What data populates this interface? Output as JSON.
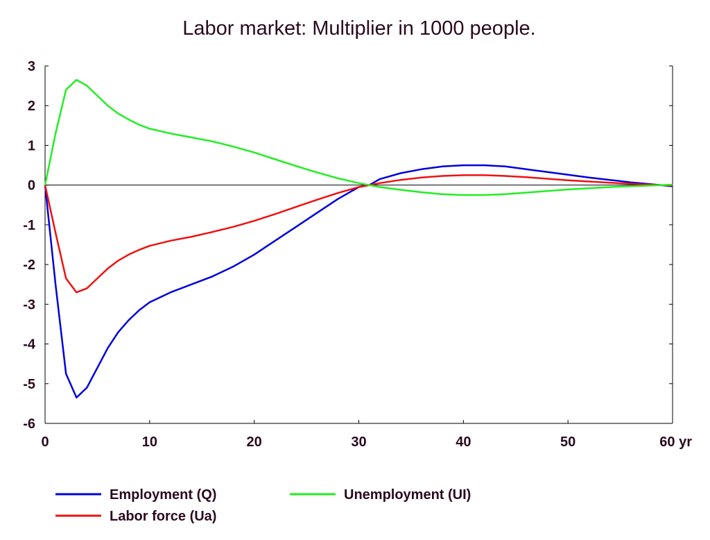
{
  "chart_data": {
    "type": "line",
    "title": "Labor market: Multiplier in 1000 people.",
    "xlabel": "",
    "ylabel": "",
    "xlim": [
      0,
      60
    ],
    "ylim": [
      -6,
      3
    ],
    "x_ticks": [
      {
        "value": 0,
        "label": "0"
      },
      {
        "value": 10,
        "label": "10"
      },
      {
        "value": 20,
        "label": "20"
      },
      {
        "value": 30,
        "label": "30"
      },
      {
        "value": 40,
        "label": "40"
      },
      {
        "value": 50,
        "label": "50"
      },
      {
        "value": 60,
        "label": "60 yr"
      }
    ],
    "y_ticks": [
      {
        "value": 3,
        "label": "3"
      },
      {
        "value": 2,
        "label": "2"
      },
      {
        "value": 1,
        "label": "1"
      },
      {
        "value": 0,
        "label": "0"
      },
      {
        "value": -1,
        "label": "-1"
      },
      {
        "value": -2,
        "label": "-2"
      },
      {
        "value": -3,
        "label": "-3"
      },
      {
        "value": -4,
        "label": "-4"
      },
      {
        "value": -5,
        "label": "-5"
      },
      {
        "value": -6,
        "label": "-6"
      }
    ],
    "grid": false,
    "legend_position": "bottom",
    "series": [
      {
        "name": "Employment (Q)",
        "color": "#0000dd",
        "points": [
          [
            0,
            0
          ],
          [
            1,
            -2.5
          ],
          [
            2,
            -4.75
          ],
          [
            3,
            -5.35
          ],
          [
            4,
            -5.1
          ],
          [
            5,
            -4.6
          ],
          [
            6,
            -4.1
          ],
          [
            7,
            -3.7
          ],
          [
            8,
            -3.4
          ],
          [
            9,
            -3.15
          ],
          [
            10,
            -2.95
          ],
          [
            12,
            -2.7
          ],
          [
            14,
            -2.5
          ],
          [
            16,
            -2.3
          ],
          [
            18,
            -2.05
          ],
          [
            20,
            -1.75
          ],
          [
            22,
            -1.4
          ],
          [
            24,
            -1.05
          ],
          [
            26,
            -0.7
          ],
          [
            28,
            -0.35
          ],
          [
            30,
            -0.05
          ],
          [
            31,
            0
          ],
          [
            32,
            0.15
          ],
          [
            34,
            0.3
          ],
          [
            36,
            0.4
          ],
          [
            38,
            0.47
          ],
          [
            40,
            0.5
          ],
          [
            42,
            0.5
          ],
          [
            44,
            0.47
          ],
          [
            46,
            0.4
          ],
          [
            48,
            0.33
          ],
          [
            50,
            0.26
          ],
          [
            52,
            0.19
          ],
          [
            54,
            0.13
          ],
          [
            56,
            0.07
          ],
          [
            58,
            0.02
          ],
          [
            60,
            -0.03
          ]
        ]
      },
      {
        "name": "Labor force (Ua)",
        "color": "#ee1111",
        "points": [
          [
            0,
            0
          ],
          [
            1,
            -1.2
          ],
          [
            2,
            -2.35
          ],
          [
            3,
            -2.7
          ],
          [
            4,
            -2.6
          ],
          [
            5,
            -2.35
          ],
          [
            6,
            -2.1
          ],
          [
            7,
            -1.9
          ],
          [
            8,
            -1.75
          ],
          [
            9,
            -1.63
          ],
          [
            10,
            -1.53
          ],
          [
            12,
            -1.4
          ],
          [
            14,
            -1.3
          ],
          [
            16,
            -1.18
          ],
          [
            18,
            -1.05
          ],
          [
            20,
            -0.9
          ],
          [
            22,
            -0.73
          ],
          [
            24,
            -0.55
          ],
          [
            26,
            -0.37
          ],
          [
            28,
            -0.2
          ],
          [
            30,
            -0.05
          ],
          [
            31,
            0
          ],
          [
            32,
            0.05
          ],
          [
            34,
            0.13
          ],
          [
            36,
            0.19
          ],
          [
            38,
            0.23
          ],
          [
            40,
            0.25
          ],
          [
            42,
            0.25
          ],
          [
            44,
            0.23
          ],
          [
            46,
            0.2
          ],
          [
            48,
            0.16
          ],
          [
            50,
            0.12
          ],
          [
            52,
            0.09
          ],
          [
            54,
            0.06
          ],
          [
            56,
            0.03
          ],
          [
            58,
            0.01
          ],
          [
            60,
            -0.01
          ]
        ]
      },
      {
        "name": "Unemployment (UI)",
        "color": "#22ee22",
        "points": [
          [
            0,
            0
          ],
          [
            1,
            1.3
          ],
          [
            2,
            2.4
          ],
          [
            3,
            2.65
          ],
          [
            4,
            2.5
          ],
          [
            5,
            2.25
          ],
          [
            6,
            2.0
          ],
          [
            7,
            1.8
          ],
          [
            8,
            1.65
          ],
          [
            9,
            1.52
          ],
          [
            10,
            1.42
          ],
          [
            12,
            1.3
          ],
          [
            14,
            1.2
          ],
          [
            16,
            1.1
          ],
          [
            18,
            0.97
          ],
          [
            20,
            0.82
          ],
          [
            22,
            0.65
          ],
          [
            24,
            0.48
          ],
          [
            26,
            0.32
          ],
          [
            28,
            0.17
          ],
          [
            30,
            0.05
          ],
          [
            31,
            0
          ],
          [
            32,
            -0.05
          ],
          [
            34,
            -0.12
          ],
          [
            36,
            -0.18
          ],
          [
            38,
            -0.23
          ],
          [
            40,
            -0.25
          ],
          [
            42,
            -0.25
          ],
          [
            44,
            -0.23
          ],
          [
            46,
            -0.19
          ],
          [
            48,
            -0.15
          ],
          [
            50,
            -0.11
          ],
          [
            52,
            -0.08
          ],
          [
            54,
            -0.05
          ],
          [
            56,
            -0.03
          ],
          [
            58,
            -0.01
          ],
          [
            60,
            0.01
          ]
        ]
      }
    ]
  }
}
